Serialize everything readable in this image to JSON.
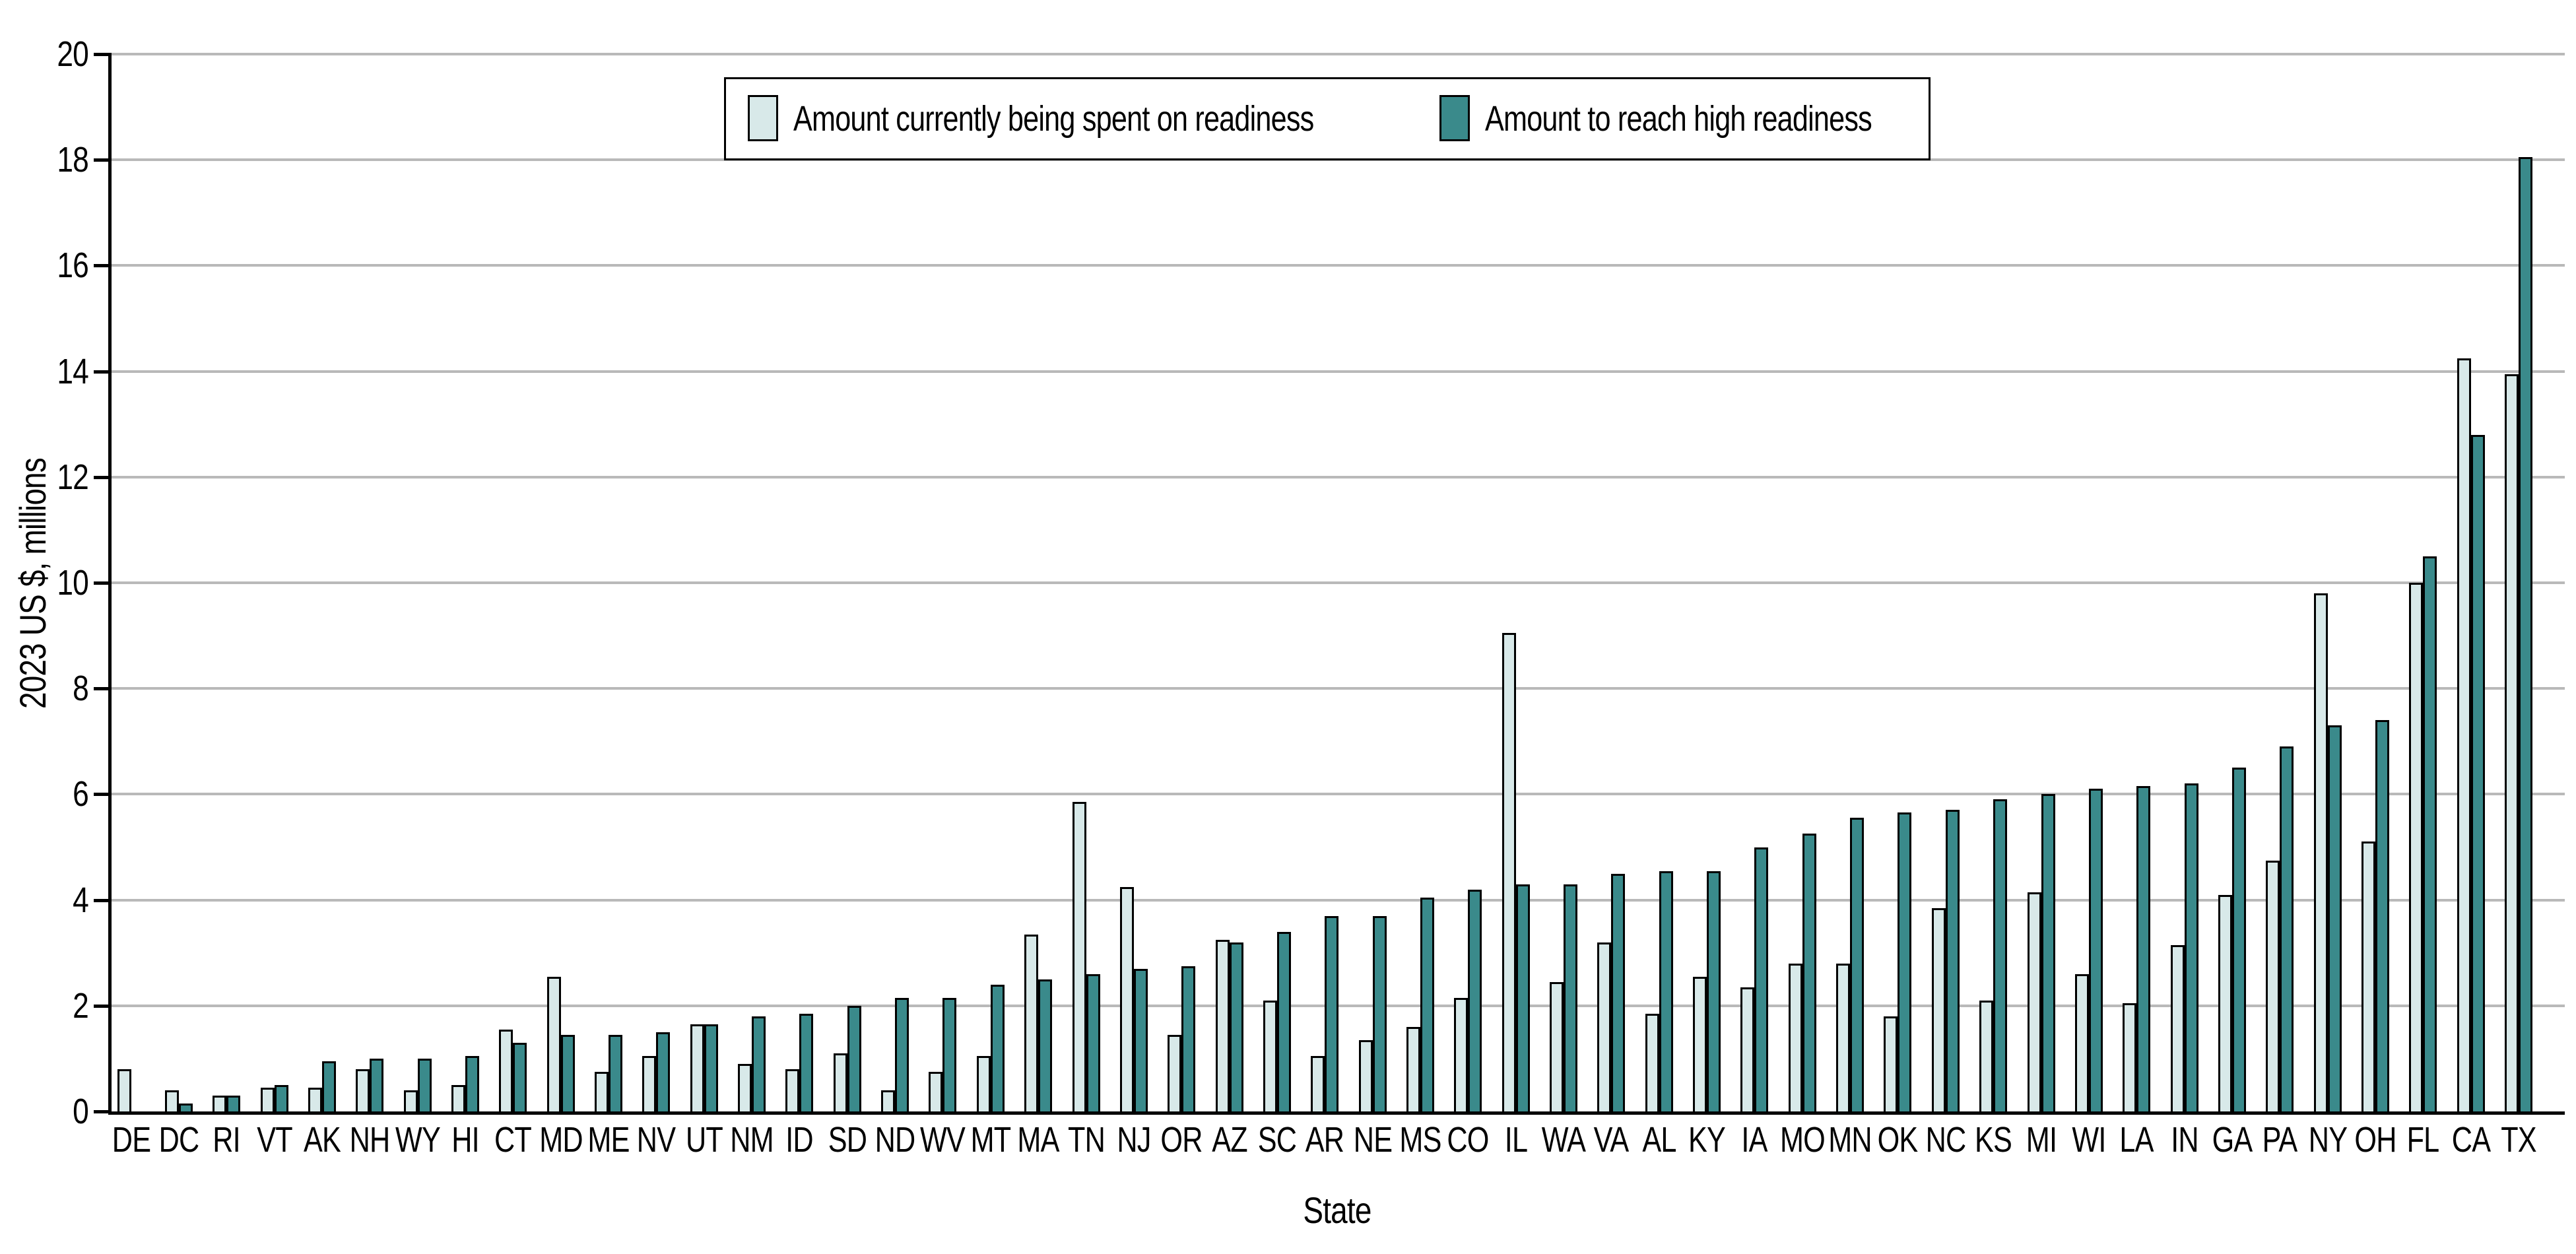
{
  "chart_data": {
    "type": "bar",
    "title": "",
    "xlabel": "State",
    "ylabel": "2023 US $, millions",
    "ylim": [
      0,
      20
    ],
    "y_ticks": [
      0,
      2,
      4,
      6,
      8,
      10,
      12,
      14,
      16,
      18,
      20
    ],
    "grid": "horizontal",
    "legend_position": "top-center-boxed",
    "categories": [
      "DE",
      "DC",
      "RI",
      "VT",
      "AK",
      "NH",
      "WY",
      "HI",
      "CT",
      "MD",
      "ME",
      "NV",
      "UT",
      "NM",
      "ID",
      "SD",
      "ND",
      "WV",
      "MT",
      "MA",
      "TN",
      "NJ",
      "OR",
      "AZ",
      "SC",
      "AR",
      "NE",
      "MS",
      "CO",
      "IL",
      "WA",
      "VA",
      "AL",
      "KY",
      "IA",
      "MO",
      "MN",
      "OK",
      "NC",
      "KS",
      "MI",
      "WI",
      "LA",
      "IN",
      "GA",
      "PA",
      "NY",
      "OH",
      "FL",
      "CA",
      "TX"
    ],
    "series": [
      {
        "name": "Amount currently being spent on readiness",
        "color": "#d8e9e9",
        "values": [
          0.8,
          0.4,
          0.3,
          0.45,
          0.45,
          0.8,
          0.4,
          0.5,
          1.55,
          2.55,
          0.75,
          1.05,
          1.65,
          0.9,
          0.8,
          1.1,
          0.4,
          0.75,
          1.05,
          3.35,
          5.85,
          4.25,
          1.45,
          3.25,
          2.1,
          1.05,
          1.35,
          1.6,
          2.15,
          9.05,
          2.45,
          3.2,
          1.85,
          2.55,
          2.35,
          2.8,
          2.8,
          1.8,
          3.85,
          2.1,
          4.15,
          2.6,
          2.05,
          3.15,
          4.1,
          4.75,
          9.8,
          5.1,
          10.0,
          14.25,
          13.95
        ]
      },
      {
        "name": "Amount to reach high readiness",
        "color": "#3a8a8b",
        "values": [
          0,
          0.15,
          0.3,
          0.5,
          0.95,
          1.0,
          1.0,
          1.05,
          1.3,
          1.45,
          1.45,
          1.5,
          1.65,
          1.8,
          1.85,
          2.0,
          2.15,
          2.15,
          2.4,
          2.5,
          2.6,
          2.7,
          2.75,
          3.2,
          3.4,
          3.7,
          3.7,
          4.05,
          4.2,
          4.3,
          4.3,
          4.5,
          4.55,
          4.55,
          5.0,
          5.25,
          5.55,
          5.65,
          5.7,
          5.9,
          6.0,
          6.1,
          6.15,
          6.2,
          6.5,
          6.9,
          7.3,
          7.4,
          10.5,
          12.8,
          18.05
        ]
      }
    ]
  },
  "colors": {
    "background": "#ffffff",
    "bar_current_fill": "#d8e9e9",
    "bar_target_fill": "#3a8a8b",
    "bar_border": "#000000",
    "gridline": "#b9b9b9",
    "axis": "#000000",
    "legend_border": "#000000",
    "text": "#000000"
  }
}
